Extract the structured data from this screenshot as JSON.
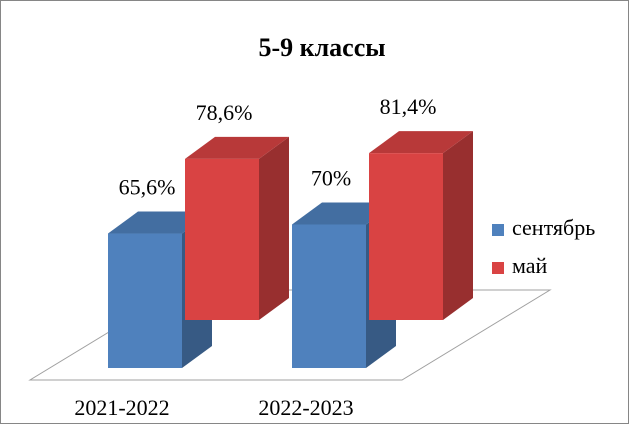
{
  "chart_data": {
    "type": "bar3d",
    "title": "5-9 классы",
    "categories": [
      "2021-2022",
      "2022-2023"
    ],
    "series": [
      {
        "name": "сентябрь",
        "color": "#4f81bd",
        "values": [
          65.6,
          70
        ],
        "value_labels": [
          "65,6%",
          "70%"
        ]
      },
      {
        "name": "май",
        "color": "#d94343",
        "values": [
          78.6,
          81.4
        ],
        "value_labels": [
          "78,6%",
          "81,4%"
        ]
      }
    ],
    "legend": "right"
  }
}
